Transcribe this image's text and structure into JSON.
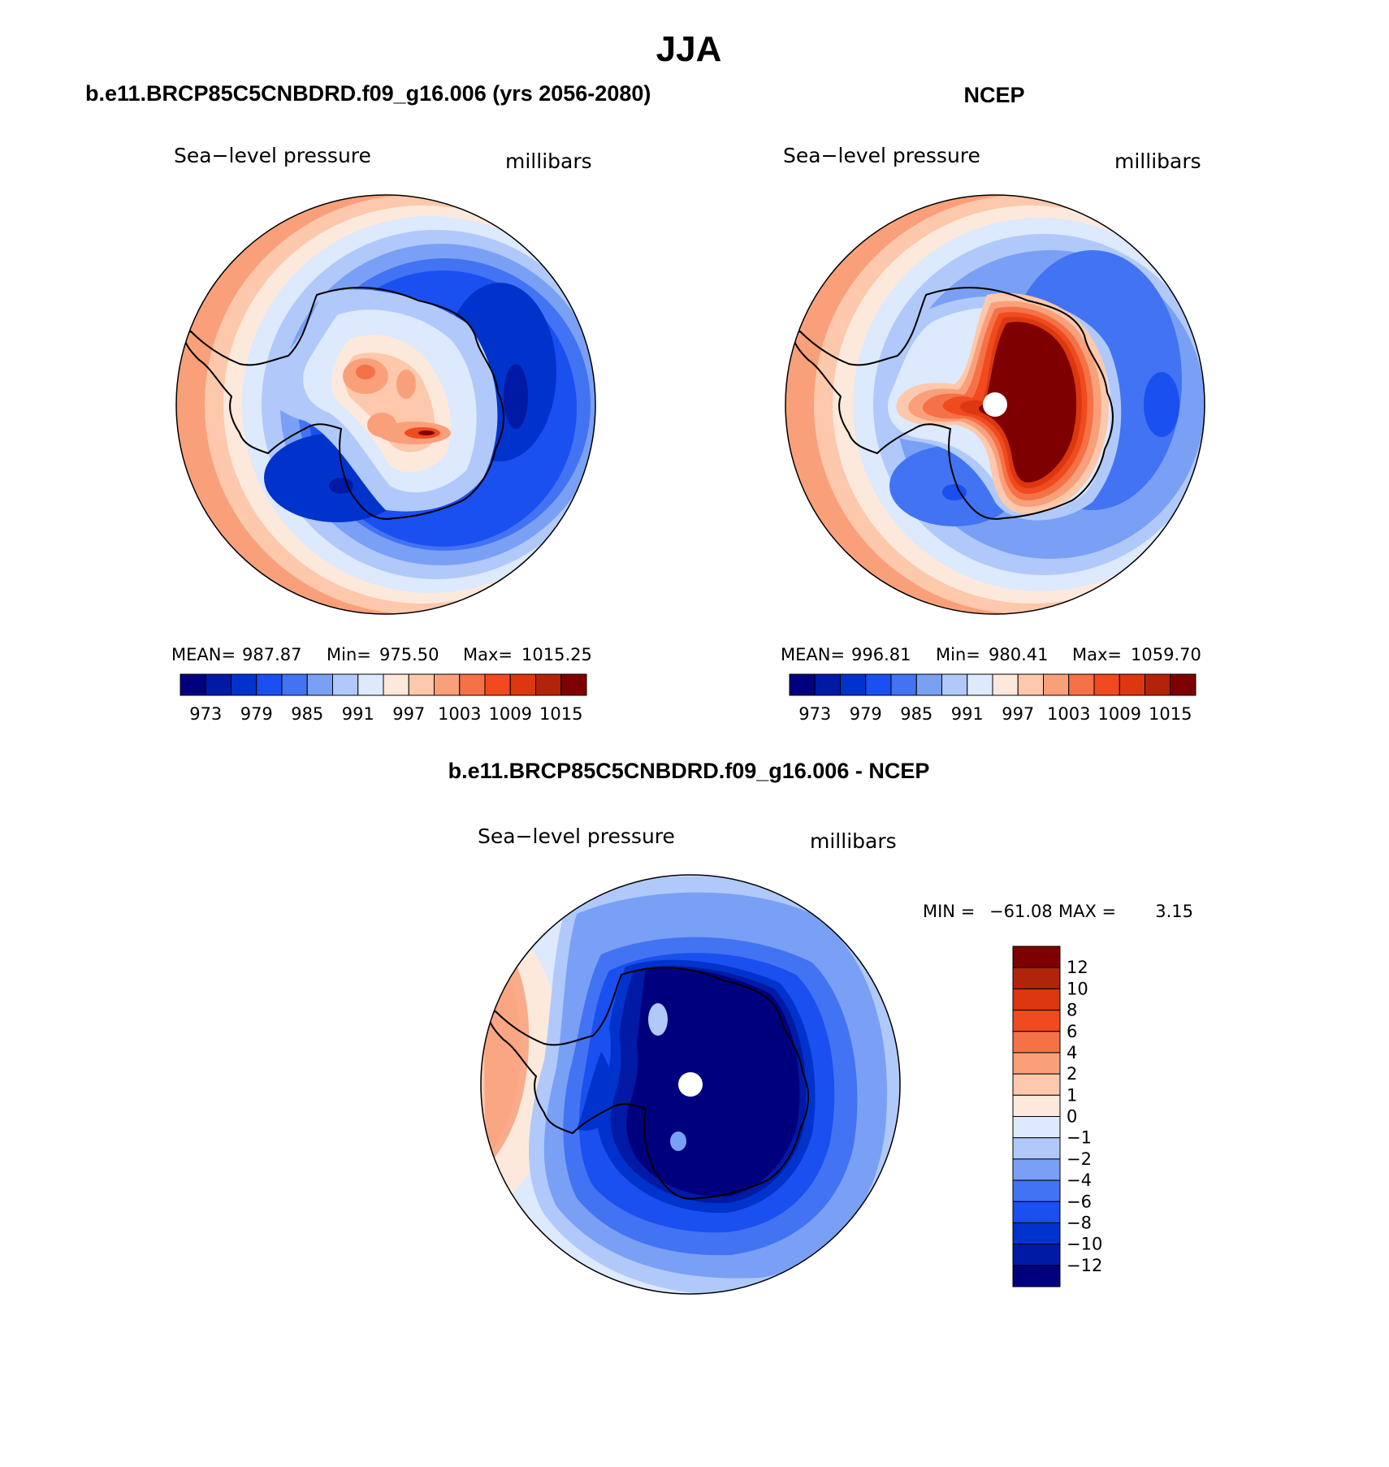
{
  "title": "JJA",
  "panels": [
    {
      "id": "model",
      "heading": "b.e11.BRCP85C5CNBDRD.f09_g16.006 (yrs 2056-2080)",
      "variable": "Sea−level pressure",
      "units": "millibars",
      "stats": {
        "mean_label": "MEAN=",
        "mean": "987.87",
        "min_label": "Min=",
        "min": "975.50",
        "max_label": "Max=",
        "max": "1015.25"
      }
    },
    {
      "id": "obs",
      "heading": "NCEP",
      "variable": "Sea−level pressure",
      "units": "millibars",
      "stats": {
        "mean_label": "MEAN=",
        "mean": "996.81",
        "min_label": "Min=",
        "min": "980.41",
        "max_label": "Max=",
        "max": "1059.70"
      }
    },
    {
      "id": "diff",
      "heading": "b.e11.BRCP85C5CNBDRD.f09_g16.006 - NCEP",
      "variable": "Sea−level pressure",
      "units": "millibars",
      "stats": {
        "min_label": "MIN =",
        "min": "−61.08",
        "max_label": "MAX =",
        "max": "3.15"
      }
    }
  ],
  "abs_colorbar": {
    "colors": [
      "#00007f",
      "#001aa6",
      "#0033cc",
      "#1a4ff0",
      "#4273f2",
      "#7aa0f5",
      "#b0c9fa",
      "#dde9fc",
      "#fde9dc",
      "#fdc8ac",
      "#f9a07a",
      "#f57147",
      "#f04a1e",
      "#db3810",
      "#b2240a",
      "#7f0000"
    ],
    "labels": [
      "973",
      "979",
      "985",
      "991",
      "997",
      "1003",
      "1009",
      "1015"
    ]
  },
  "diff_colorbar": {
    "colors_top_to_bottom": [
      "#7f0000",
      "#b2240a",
      "#db3810",
      "#f04a1e",
      "#f57147",
      "#f9a07a",
      "#fdc8ac",
      "#fde9dc",
      "#dde9fc",
      "#b0c9fa",
      "#7aa0f5",
      "#4273f2",
      "#1a4ff0",
      "#0033cc",
      "#001aa6",
      "#00007f"
    ],
    "labels_top_to_bottom": [
      "12",
      "10",
      "8",
      "6",
      "4",
      "2",
      "1",
      "0",
      "−1",
      "−2",
      "−4",
      "−6",
      "−8",
      "−10",
      "−12"
    ]
  }
}
